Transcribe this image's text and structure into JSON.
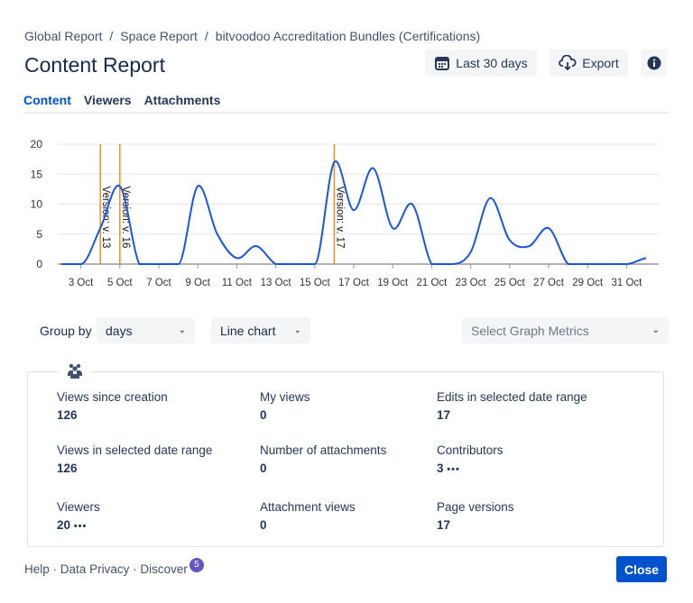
{
  "breadcrumb": [
    "Global Report",
    "Space Report",
    "bitvoodoo Accreditation Bundles (Certifications)"
  ],
  "breadcrumb_sep": "/",
  "title": "Content Report",
  "header_buttons": {
    "date_range": "Last 30 days",
    "export": "Export",
    "info_icon": "info-icon"
  },
  "tabs": [
    {
      "label": "Content",
      "active": true
    },
    {
      "label": "Viewers"
    },
    {
      "label": "Attachments"
    }
  ],
  "chart_data": {
    "type": "line",
    "x": [
      "2 Oct",
      "3 Oct",
      "4 Oct",
      "5 Oct",
      "6 Oct",
      "7 Oct",
      "8 Oct",
      "9 Oct",
      "10 Oct",
      "11 Oct",
      "12 Oct",
      "13 Oct",
      "14 Oct",
      "15 Oct",
      "16 Oct",
      "17 Oct",
      "18 Oct",
      "19 Oct",
      "20 Oct",
      "21 Oct",
      "22 Oct",
      "23 Oct",
      "24 Oct",
      "25 Oct",
      "26 Oct",
      "27 Oct",
      "28 Oct",
      "29 Oct",
      "30 Oct",
      "31 Oct",
      "1 Nov"
    ],
    "values": [
      0,
      0,
      6,
      13,
      0,
      0,
      0,
      13,
      5,
      1,
      3,
      0,
      0,
      0,
      17,
      9,
      16,
      6,
      10,
      0,
      0,
      2,
      11,
      4,
      3,
      6,
      0,
      0,
      0,
      0,
      1
    ],
    "xticks": [
      "3 Oct",
      "5 Oct",
      "7 Oct",
      "9 Oct",
      "11 Oct",
      "13 Oct",
      "15 Oct",
      "17 Oct",
      "19 Oct",
      "21 Oct",
      "23 Oct",
      "25 Oct",
      "27 Oct",
      "29 Oct",
      "31 Oct"
    ],
    "yticks": [
      0,
      5,
      10,
      15,
      20
    ],
    "ylim": [
      0,
      20
    ],
    "grid": true,
    "line_color": "#1a56db",
    "annotations": [
      {
        "x": "4 Oct",
        "label": "Version: v. 13"
      },
      {
        "x": "5 Oct",
        "label": "Version: v. 16"
      },
      {
        "x": "16 Oct",
        "label": "Version: v. 17"
      }
    ],
    "annotation_color": "#f08a24"
  },
  "controls": {
    "group_by_label": "Group by",
    "group_by_value": "days",
    "chart_type": "Line chart",
    "metrics_placeholder": "Select Graph Metrics"
  },
  "stats": [
    {
      "label": "Views since creation",
      "value": "126"
    },
    {
      "label": "My views",
      "value": "0"
    },
    {
      "label": "Edits in selected date range",
      "value": "17"
    },
    {
      "label": "Views in selected date range",
      "value": "126"
    },
    {
      "label": "Number of attachments",
      "value": "0"
    },
    {
      "label": "Contributors",
      "value": "3",
      "more": "•••"
    },
    {
      "label": "Viewers",
      "value": "20",
      "more": "•••"
    },
    {
      "label": "Attachment views",
      "value": "0"
    },
    {
      "label": "Page versions",
      "value": "17"
    }
  ],
  "footer": {
    "help": "Help",
    "privacy": "Data Privacy",
    "discover": "Discover",
    "discover_badge": "5",
    "dot": "·"
  },
  "close_label": "Close"
}
